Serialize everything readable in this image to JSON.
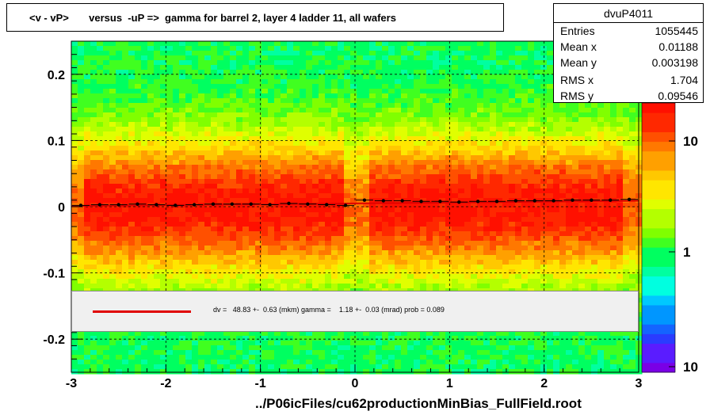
{
  "title": "<v - vP>       versus  -uP =>  gamma for barrel 2, layer 4 ladder 11, all wafers",
  "stats": {
    "name": "dvuP4011",
    "rows": [
      {
        "key": "Entries",
        "value": "1055445"
      },
      {
        "key": "Mean x",
        "value": "0.01188"
      },
      {
        "key": "Mean y",
        "value": "0.003198"
      },
      {
        "key": "RMS x",
        "value": "1.704"
      },
      {
        "key": "RMS y",
        "value": "0.09546"
      }
    ]
  },
  "legend": {
    "text": "dv =   48.83 +-  0.63 (mkm) gamma =    1.18 +-  0.03 (mrad) prob = 0.089",
    "line_color": "#e00000"
  },
  "colorbar": {
    "scale": "log",
    "labels": [
      "10",
      "1",
      "10"
    ]
  },
  "chart_data": {
    "type": "heatmap",
    "xlabel": "../P06icFiles/cu62productionMinBias_FullField.root",
    "ylabel": "",
    "xlim": [
      -3,
      3
    ],
    "ylim": [
      -0.25,
      0.25
    ],
    "x_ticks": [
      -3,
      -2,
      -1,
      0,
      1,
      2,
      3
    ],
    "x_tick_labels": [
      "-3",
      "-2",
      "-1",
      "0",
      "1",
      "2",
      "3"
    ],
    "y_ticks": [
      -0.2,
      -0.1,
      0,
      0.1,
      0.2
    ],
    "y_tick_labels": [
      "-0.2",
      "-0.1",
      "0",
      "0.1",
      "0.2"
    ],
    "grid": true,
    "profile": {
      "x": [
        -2.9,
        -2.7,
        -2.5,
        -2.3,
        -2.1,
        -1.9,
        -1.7,
        -1.5,
        -1.3,
        -1.1,
        -0.9,
        -0.7,
        -0.5,
        -0.3,
        -0.1,
        0.1,
        0.3,
        0.5,
        0.7,
        0.9,
        1.1,
        1.3,
        1.5,
        1.7,
        1.9,
        2.1,
        2.3,
        2.5,
        2.7,
        2.9
      ],
      "y": [
        0.002,
        0.003,
        0.003,
        0.004,
        0.003,
        0.002,
        0.003,
        0.004,
        0.004,
        0.004,
        0.003,
        0.005,
        0.004,
        0.003,
        0.002,
        0.01,
        0.009,
        0.009,
        0.008,
        0.008,
        0.007,
        0.008,
        0.008,
        0.009,
        0.009,
        0.009,
        0.01,
        0.01,
        0.01,
        0.011
      ]
    },
    "fit_line": {
      "x": [
        -3,
        3
      ],
      "y": [
        0.001,
        0.009
      ]
    }
  }
}
